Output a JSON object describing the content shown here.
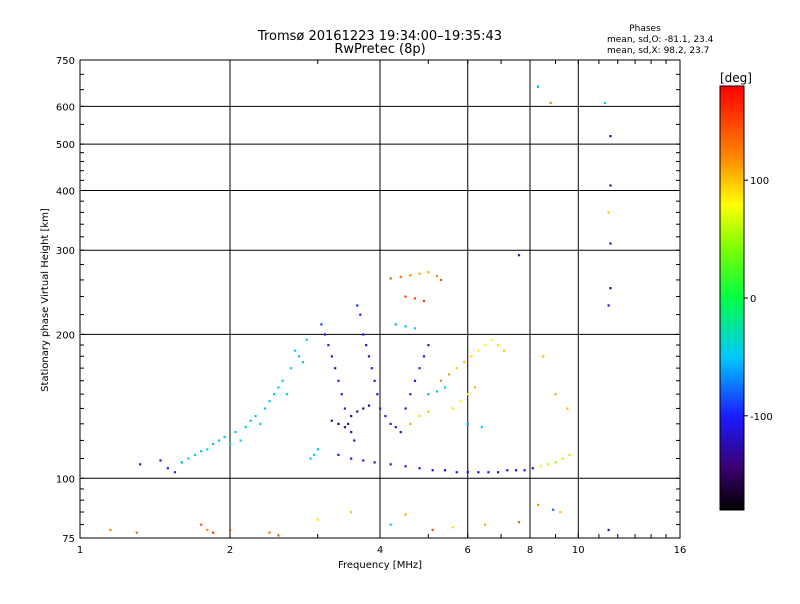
{
  "chart_data": {
    "type": "scatter",
    "title": "Tromsø 20161223 19:34:00–19:35:43",
    "subtitle": "RwPretec (8p)",
    "xlabel": "Frequency [MHz]",
    "ylabel": "Stationary phase Virtual Height [km]",
    "x_scale": "log",
    "y_scale": "log",
    "xlim": [
      1,
      16
    ],
    "ylim": [
      75,
      750
    ],
    "x_ticks": [
      1,
      2,
      4,
      6,
      8,
      10,
      16
    ],
    "x_tick_labels": [
      "1",
      "2",
      "4",
      "6",
      "8",
      "10",
      "16"
    ],
    "y_ticks": [
      75,
      100,
      200,
      300,
      400,
      500,
      600,
      750
    ],
    "y_tick_labels": [
      "75",
      "100",
      "200",
      "300",
      "400",
      "500",
      "600",
      "750"
    ],
    "grid": true,
    "stats": {
      "heading": "Phases",
      "line_o": "mean, sd,O: -81.1, 23.4",
      "line_x": "mean, sd,X:  98.2, 23.7"
    },
    "colorbar": {
      "label": "[deg]",
      "min": -180,
      "max": 180,
      "ticks": [
        100,
        0,
        -100
      ],
      "tick_labels": [
        "100",
        "0",
        "-100"
      ]
    },
    "series": [
      {
        "points": [
          [
            1.32,
            107,
            -110
          ],
          [
            1.45,
            109,
            -105
          ],
          [
            1.5,
            105,
            -100
          ],
          [
            1.55,
            103,
            -95
          ],
          [
            1.6,
            108,
            -60
          ],
          [
            1.65,
            110,
            -50
          ],
          [
            1.7,
            112,
            -45
          ],
          [
            1.75,
            114,
            -48
          ],
          [
            1.8,
            115,
            -42
          ],
          [
            1.85,
            118,
            -55
          ],
          [
            1.9,
            120,
            -40
          ],
          [
            1.95,
            122,
            -45
          ],
          [
            2.0,
            118,
            -38
          ],
          [
            2.05,
            125,
            -50
          ],
          [
            2.1,
            120,
            -45
          ],
          [
            2.15,
            128,
            -35
          ],
          [
            2.2,
            132,
            -50
          ],
          [
            2.25,
            135,
            -42
          ],
          [
            2.3,
            130,
            -40
          ],
          [
            2.35,
            140,
            -48
          ],
          [
            2.4,
            145,
            -45
          ],
          [
            2.45,
            150,
            -38
          ],
          [
            2.5,
            155,
            -40
          ],
          [
            2.55,
            160,
            -45
          ],
          [
            2.6,
            150,
            -35
          ],
          [
            2.65,
            170,
            -40
          ],
          [
            2.7,
            185,
            -45
          ],
          [
            2.75,
            180,
            -40
          ],
          [
            2.8,
            175,
            -50
          ],
          [
            2.85,
            195,
            -40
          ],
          [
            2.9,
            110,
            -42
          ],
          [
            2.95,
            112,
            -45
          ],
          [
            3.0,
            115,
            -45
          ],
          [
            3.05,
            210,
            -90
          ],
          [
            3.1,
            200,
            -100
          ],
          [
            3.15,
            190,
            -110
          ],
          [
            3.2,
            180,
            -105
          ],
          [
            3.25,
            170,
            -115
          ],
          [
            3.3,
            160,
            -100
          ],
          [
            3.35,
            150,
            -110
          ],
          [
            3.4,
            140,
            -108
          ],
          [
            3.45,
            130,
            -120
          ],
          [
            3.5,
            125,
            -115
          ],
          [
            3.55,
            120,
            -112
          ],
          [
            3.6,
            230,
            -95
          ],
          [
            3.65,
            220,
            -100
          ],
          [
            3.7,
            200,
            -100
          ],
          [
            3.75,
            190,
            -105
          ],
          [
            3.8,
            180,
            -110
          ],
          [
            3.85,
            170,
            -100
          ],
          [
            3.9,
            160,
            -105
          ],
          [
            3.95,
            150,
            -110
          ],
          [
            4.0,
            140,
            -100
          ],
          [
            4.1,
            135,
            -105
          ],
          [
            4.2,
            130,
            -115
          ],
          [
            4.3,
            128,
            -110
          ],
          [
            4.4,
            125,
            -120
          ],
          [
            4.5,
            140,
            -110
          ],
          [
            4.6,
            150,
            -100
          ],
          [
            4.7,
            160,
            -105
          ],
          [
            4.8,
            170,
            -100
          ],
          [
            4.9,
            180,
            -110
          ],
          [
            5.0,
            190,
            -105
          ],
          [
            3.2,
            132,
            -140
          ],
          [
            3.3,
            130,
            -145
          ],
          [
            3.4,
            128,
            -130
          ],
          [
            3.5,
            135,
            -140
          ],
          [
            3.6,
            138,
            -135
          ],
          [
            3.7,
            140,
            -140
          ],
          [
            3.8,
            142,
            -130
          ],
          [
            3.3,
            112,
            -110
          ],
          [
            3.5,
            110,
            -115
          ],
          [
            3.7,
            109,
            -110
          ],
          [
            3.9,
            108,
            -112
          ],
          [
            4.2,
            107,
            -115
          ],
          [
            4.5,
            106,
            -108
          ],
          [
            4.8,
            105,
            -110
          ],
          [
            5.1,
            104,
            -112
          ],
          [
            5.4,
            104,
            -115
          ],
          [
            5.7,
            103,
            -110
          ],
          [
            6.0,
            103,
            -112
          ],
          [
            6.3,
            103,
            -115
          ],
          [
            6.6,
            103,
            -108
          ],
          [
            6.9,
            103,
            -110
          ],
          [
            7.2,
            104,
            -112
          ],
          [
            7.5,
            104,
            -110
          ],
          [
            7.8,
            104,
            -115
          ],
          [
            8.1,
            105,
            -112
          ],
          [
            8.4,
            106,
            70
          ],
          [
            8.7,
            107,
            60
          ],
          [
            9.0,
            108,
            50
          ],
          [
            9.3,
            110,
            65
          ],
          [
            9.6,
            112,
            55
          ],
          [
            5.3,
            160,
            120
          ],
          [
            5.5,
            165,
            110
          ],
          [
            5.7,
            170,
            95
          ],
          [
            5.9,
            175,
            100
          ],
          [
            6.1,
            180,
            90
          ],
          [
            6.3,
            185,
            85
          ],
          [
            6.5,
            190,
            80
          ],
          [
            6.7,
            195,
            75
          ],
          [
            6.9,
            190,
            90
          ],
          [
            7.1,
            185,
            100
          ],
          [
            5.6,
            140,
            90
          ],
          [
            5.8,
            145,
            80
          ],
          [
            6.0,
            150,
            85
          ],
          [
            6.2,
            155,
            100
          ],
          [
            4.6,
            130,
            110
          ],
          [
            4.8,
            135,
            95
          ],
          [
            5.0,
            138,
            100
          ],
          [
            4.2,
            262,
            140
          ],
          [
            4.4,
            264,
            130
          ],
          [
            4.6,
            266,
            120
          ],
          [
            4.8,
            268,
            110
          ],
          [
            5.0,
            270,
            105
          ],
          [
            5.2,
            265,
            120
          ],
          [
            5.3,
            260,
            140
          ],
          [
            4.5,
            240,
            150
          ],
          [
            4.7,
            238,
            145
          ],
          [
            4.9,
            235,
            155
          ],
          [
            5.0,
            150,
            -60
          ],
          [
            5.2,
            152,
            -50
          ],
          [
            5.4,
            155,
            -40
          ],
          [
            6.0,
            130,
            -60
          ],
          [
            6.4,
            128,
            -50
          ],
          [
            4.3,
            210,
            -60
          ],
          [
            4.5,
            208,
            -55
          ],
          [
            4.7,
            206,
            -50
          ],
          [
            8.3,
            660,
            -60
          ],
          [
            8.8,
            610,
            120
          ],
          [
            11.3,
            610,
            -50
          ],
          [
            11.6,
            520,
            -130
          ],
          [
            11.6,
            410,
            -130
          ],
          [
            11.5,
            360,
            100
          ],
          [
            11.6,
            310,
            -120
          ],
          [
            11.6,
            250,
            -140
          ],
          [
            11.5,
            230,
            -110
          ],
          [
            7.6,
            293,
            -120
          ],
          [
            8.5,
            180,
            100
          ],
          [
            9.0,
            150,
            110
          ],
          [
            9.5,
            140,
            100
          ],
          [
            1.15,
            78,
            120
          ],
          [
            1.3,
            77,
            130
          ],
          [
            1.75,
            80,
            140
          ],
          [
            1.8,
            78,
            120
          ],
          [
            1.85,
            77,
            160
          ],
          [
            2.0,
            78,
            150
          ],
          [
            2.4,
            77,
            130
          ],
          [
            2.5,
            76,
            145
          ],
          [
            3.0,
            82,
            90
          ],
          [
            3.5,
            85,
            100
          ],
          [
            4.2,
            80,
            -50
          ],
          [
            4.5,
            84,
            110
          ],
          [
            5.1,
            78,
            150
          ],
          [
            5.6,
            79,
            90
          ],
          [
            6.5,
            80,
            110
          ],
          [
            7.6,
            81,
            140
          ],
          [
            8.3,
            88,
            120
          ],
          [
            8.9,
            86,
            -80
          ],
          [
            9.2,
            85,
            100
          ],
          [
            11.5,
            78,
            -110
          ]
        ]
      }
    ]
  }
}
